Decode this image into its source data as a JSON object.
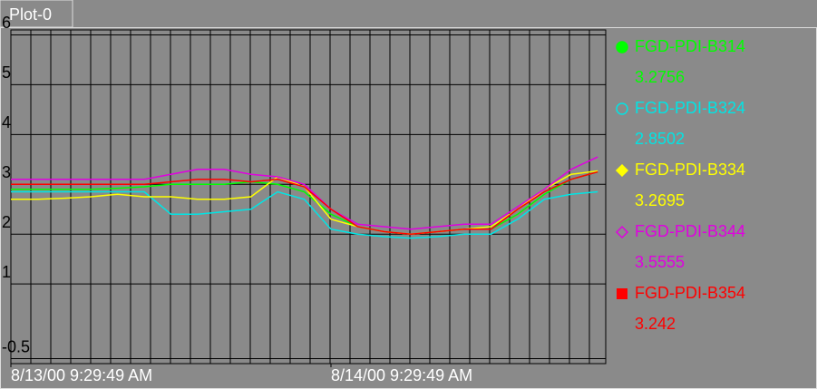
{
  "chart_data": {
    "type": "line",
    "title": "Plot-0",
    "xlim": [
      0,
      44.6
    ],
    "xticks": [
      {
        "value": 0,
        "label": "8/13/00 9:29:49 AM"
      },
      {
        "value": 24,
        "label": "8/14/00 9:29:49 AM"
      }
    ],
    "ylim": [
      -0.6,
      6.1
    ],
    "yticks": [
      6,
      5,
      4,
      3,
      2,
      1,
      -0.5
    ],
    "grid": true,
    "x": [
      0,
      2,
      4,
      6,
      8,
      10,
      12,
      14,
      16,
      18,
      20,
      22,
      24,
      26,
      28,
      30,
      32,
      34,
      36,
      38,
      40,
      42,
      44
    ],
    "series": [
      {
        "name": "FGD-PDI-B314",
        "color": "#00ff00",
        "marker": "circle",
        "current": 3.2756,
        "values": [
          2.9,
          2.9,
          2.9,
          2.9,
          2.92,
          2.95,
          3.0,
          3.0,
          3.0,
          3.05,
          3.0,
          2.85,
          2.4,
          2.15,
          2.05,
          2.0,
          2.05,
          2.1,
          2.1,
          2.4,
          2.8,
          3.1,
          3.25
        ]
      },
      {
        "name": "FGD-PDI-B324",
        "color": "#00e5e5",
        "marker": "open-circle",
        "current": 2.8502,
        "values": [
          2.85,
          2.85,
          2.85,
          2.85,
          2.85,
          2.85,
          2.4,
          2.4,
          2.45,
          2.5,
          2.85,
          2.7,
          2.1,
          2.0,
          1.95,
          1.92,
          1.95,
          2.0,
          2.0,
          2.3,
          2.7,
          2.8,
          2.85
        ]
      },
      {
        "name": "FGD-PDI-B334",
        "color": "#ffff00",
        "marker": "diamond",
        "current": 3.2695,
        "values": [
          2.7,
          2.7,
          2.72,
          2.75,
          2.8,
          2.75,
          2.75,
          2.7,
          2.7,
          2.75,
          3.15,
          2.95,
          2.3,
          2.15,
          2.05,
          2.0,
          2.05,
          2.1,
          2.15,
          2.5,
          2.9,
          3.2,
          3.27
        ]
      },
      {
        "name": "FGD-PDI-B344",
        "color": "#e000e0",
        "marker": "open-diamond",
        "current": 3.5555,
        "values": [
          3.1,
          3.1,
          3.1,
          3.1,
          3.1,
          3.1,
          3.2,
          3.3,
          3.3,
          3.2,
          3.15,
          3.0,
          2.5,
          2.2,
          2.15,
          2.1,
          2.15,
          2.2,
          2.2,
          2.55,
          2.9,
          3.3,
          3.55
        ]
      },
      {
        "name": "FGD-PDI-B354",
        "color": "#ff0000",
        "marker": "square",
        "current": 3.242,
        "values": [
          3.0,
          3.0,
          3.0,
          3.0,
          3.0,
          3.0,
          3.05,
          3.1,
          3.1,
          3.05,
          3.1,
          2.95,
          2.5,
          2.15,
          2.05,
          2.0,
          2.05,
          2.1,
          2.1,
          2.5,
          2.85,
          3.1,
          3.25
        ]
      }
    ]
  }
}
